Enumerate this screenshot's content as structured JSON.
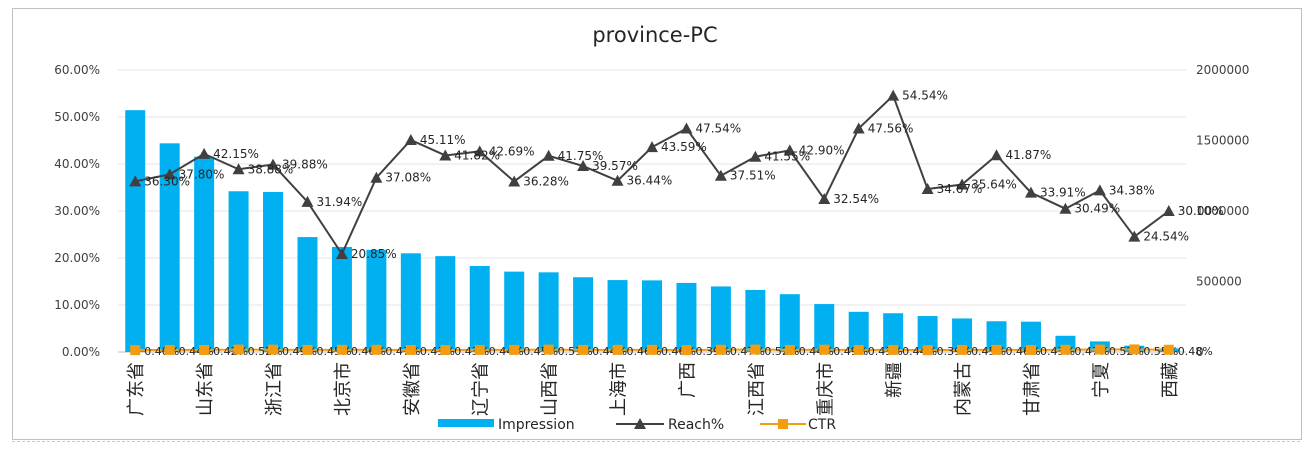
{
  "chart_data": {
    "type": "bar",
    "title": "province-PC",
    "categories": [
      "广东省",
      "",
      "山东省",
      "",
      "浙江省",
      "",
      "北京市",
      "",
      "安徽省",
      "",
      "辽宁省",
      "",
      "山西省",
      "",
      "上海市",
      "",
      "广西",
      "",
      "江西省",
      "",
      "重庆市",
      "",
      "新疆",
      "",
      "内蒙古",
      "",
      "甘肃省",
      "",
      "宁夏",
      "",
      "西藏"
    ],
    "y_left": {
      "ticks": [
        "60.00%",
        "50.00%",
        "40.00%",
        "30.00%",
        "20.00%",
        "10.00%",
        "0.00%"
      ],
      "lim": [
        0,
        60
      ]
    },
    "y_right": {
      "ticks": [
        "2000000",
        "1500000",
        "1000000",
        "500000",
        "0"
      ],
      "lim": [
        0,
        2000000
      ]
    },
    "legend": {
      "position": "bottom",
      "items": [
        "Impression",
        "Reach%",
        "CTR"
      ]
    },
    "colors": {
      "impression": "#00b0f0",
      "reach": "#404040",
      "ctr": "#f39c12"
    },
    "series": [
      {
        "name": "Impression",
        "axis": "right",
        "type": "bar",
        "values": [
          1715000,
          1480000,
          1385000,
          1140000,
          1135000,
          815000,
          745000,
          725000,
          700000,
          680000,
          610000,
          570000,
          565000,
          530000,
          510000,
          508000,
          490000,
          465000,
          440000,
          410000,
          340000,
          285000,
          275000,
          255000,
          238000,
          218000,
          215000,
          115000,
          75000,
          45000,
          25000
        ]
      },
      {
        "name": "Reach%",
        "axis": "left",
        "type": "line",
        "values": [
          36.3,
          37.8,
          42.15,
          38.88,
          39.88,
          31.94,
          20.85,
          37.08,
          45.11,
          41.82,
          42.69,
          36.28,
          41.75,
          39.57,
          36.44,
          43.59,
          47.54,
          37.51,
          41.55,
          42.9,
          32.54,
          47.56,
          54.54,
          34.67,
          35.64,
          41.87,
          33.91,
          30.49,
          34.38,
          24.54,
          30.0
        ],
        "labels": [
          "36.30%",
          "37.80%",
          "42.15%",
          "38.88%",
          "39.88%",
          "31.94%",
          "20.85%",
          "37.08%",
          "45.11%",
          "41.82%",
          "42.69%",
          "36.28%",
          "41.75%",
          "39.57%",
          "36.44%",
          "43.59%",
          "47.54%",
          "37.51%",
          "41.55%",
          "42.90%",
          "32.54%",
          "47.56%",
          "54.54%",
          "34.67%",
          "35.64%",
          "41.87%",
          "33.91%",
          "30.49%",
          "34.38%",
          "24.54%",
          "30.00%"
        ]
      },
      {
        "name": "CTR",
        "axis": "left",
        "type": "line",
        "values": [
          0.4,
          0.44,
          0.42,
          0.52,
          0.49,
          0.45,
          0.46,
          0.47,
          0.43,
          0.43,
          0.44,
          0.45,
          0.51,
          0.44,
          0.46,
          0.46,
          0.39,
          0.47,
          0.52,
          0.44,
          0.49,
          0.43,
          0.44,
          0.39,
          0.45,
          0.46,
          0.43,
          0.47,
          0.52,
          0.55,
          0.48
        ],
        "labels": [
          "0.40%",
          "0.44%",
          "0.42%",
          "0.52%",
          "0.49%",
          "0.45%",
          "0.46%",
          "0.47%",
          "0.43%",
          "0.43%",
          "0.44%",
          "0.45%",
          "0.51%",
          "0.44%",
          "0.46%",
          "0.46%",
          "0.39%",
          "0.47%",
          "0.52%",
          "0.44%",
          "0.49%",
          "0.43%",
          "0.44%",
          "0.39%",
          "0.45%",
          "0.46%",
          "0.43%",
          "0.47%",
          "0.52%",
          "0.55%",
          "0.48%"
        ]
      }
    ]
  }
}
